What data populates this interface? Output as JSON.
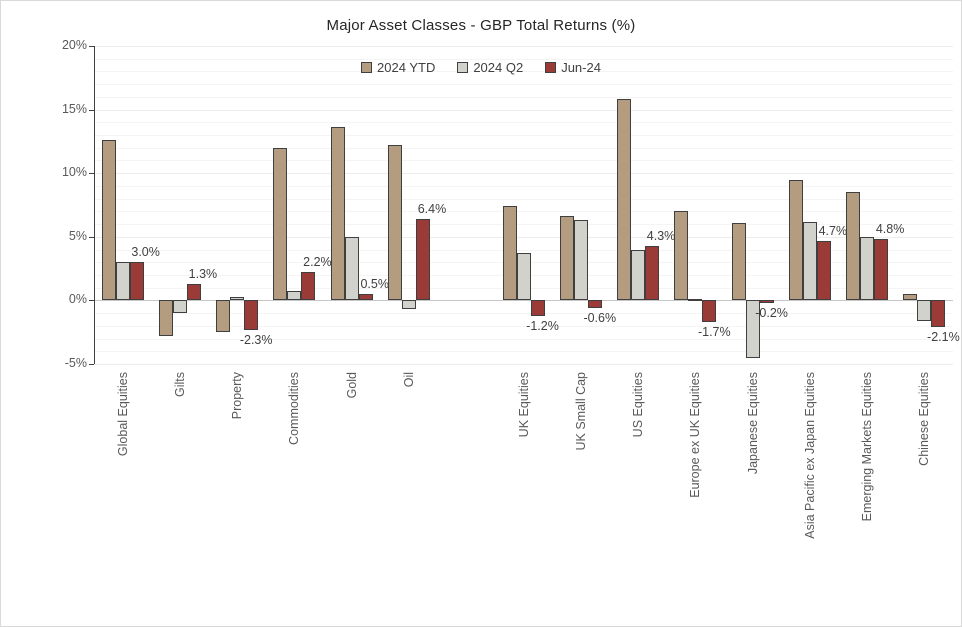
{
  "chart_data": {
    "type": "bar",
    "title": "Major Asset Classes - GBP Total Returns (%)",
    "categories": [
      "Global Equities",
      "Gilts",
      "Property",
      "Commodities",
      "Gold",
      "Oil",
      "UK Equities",
      "UK Small Cap",
      "US Equities",
      "Europe ex UK Equities",
      "Japanese Equities",
      "Asia Pacific ex Japan Equities",
      "Emerging Markets Equities",
      "Chinese Equities"
    ],
    "gap_after_index": 5,
    "series": [
      {
        "name": "2024 YTD",
        "color": "#b49c80",
        "values": [
          12.6,
          -2.8,
          -2.5,
          12.0,
          13.6,
          12.2,
          7.4,
          6.6,
          15.8,
          7.0,
          6.1,
          9.5,
          8.5,
          0.5
        ]
      },
      {
        "name": "2024 Q2",
        "color": "#d1d2cb",
        "values": [
          3.0,
          -1.0,
          0.3,
          0.7,
          5.0,
          -0.7,
          3.7,
          6.3,
          4.0,
          0.1,
          -4.5,
          6.2,
          5.0,
          -1.6
        ]
      },
      {
        "name": "Jun-24",
        "color": "#9a3b38",
        "values": [
          3.0,
          1.3,
          -2.3,
          2.2,
          0.5,
          6.4,
          -1.2,
          -0.6,
          4.3,
          -1.7,
          -0.2,
          4.7,
          4.8,
          -2.1
        ],
        "data_labels": [
          "3.0%",
          "1.3%",
          "-2.3%",
          "2.2%",
          "0.5%",
          "6.4%",
          "-1.2%",
          "-0.6%",
          "4.3%",
          "-1.7%",
          "-0.2%",
          "4.7%",
          "4.8%",
          "-2.1%"
        ]
      }
    ],
    "ylim": [
      -5,
      20
    ],
    "ytick_step": 5,
    "minor_grid_step": 1,
    "ytick_labels": [
      "20%",
      "15%",
      "10%",
      "5%",
      "0%",
      "-5%"
    ],
    "grid": true,
    "legend_position": "top",
    "bar_border_color": "#3f3f3f",
    "axis_color": "#404040"
  }
}
